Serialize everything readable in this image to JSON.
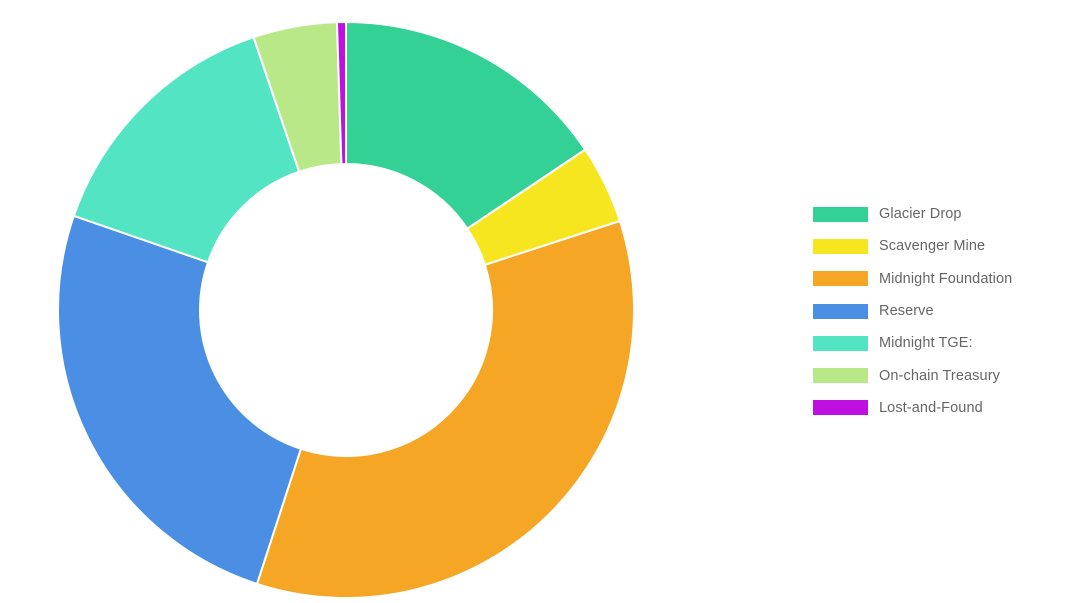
{
  "chart_data": {
    "type": "pie",
    "variant": "donut",
    "title": "",
    "legend_position": "right",
    "categories": [
      "Glacier Drop",
      "Scavenger Mine",
      "Midnight Foundation",
      "Reserve",
      "Midnight TGE:",
      "On-chain Treasury",
      "Lost-and-Found"
    ],
    "values": [
      15.6,
      4.4,
      35.0,
      25.3,
      14.5,
      4.7,
      0.5
    ],
    "unit": "%",
    "colors": [
      "#33d195",
      "#f6e620",
      "#f4a624",
      "#4a8fe3",
      "#53e4c4",
      "#b9e889",
      "#bf0fe1"
    ]
  }
}
